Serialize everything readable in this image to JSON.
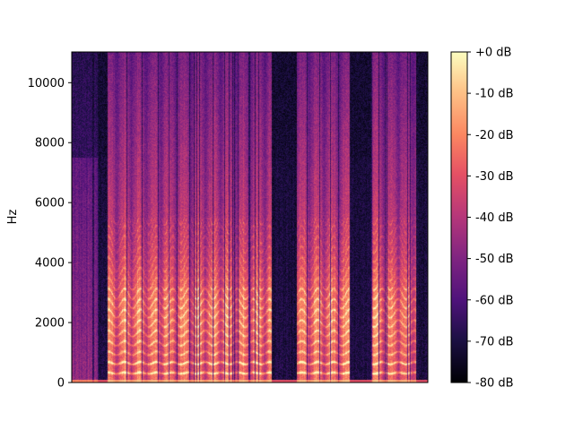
{
  "chart_data": {
    "type": "heatmap",
    "kind": "spectrogram",
    "colormap": "magma",
    "title": "",
    "xlabel": "",
    "ylabel": "Hz",
    "ylim": [
      0,
      11025
    ],
    "yticks": [
      0,
      2000,
      4000,
      6000,
      8000,
      10000
    ],
    "ytick_labels": [
      "0",
      "2000",
      "4000",
      "6000",
      "8000",
      "10000"
    ],
    "xticks": [],
    "grid": false,
    "colorbar": {
      "range_db": [
        -80,
        0
      ],
      "ticks": [
        0,
        -10,
        -20,
        -30,
        -40,
        -50,
        -60,
        -70,
        -80
      ],
      "tick_labels": [
        "+0 dB",
        "-10 dB",
        "-20 dB",
        "-30 dB",
        "-40 dB",
        "-50 dB",
        "-60 dB",
        "-70 dB",
        "-80 dB"
      ]
    },
    "silent_segments": [
      [
        0.075,
        0.1
      ],
      [
        0.56,
        0.63
      ],
      [
        0.78,
        0.84
      ],
      [
        0.965,
        1.0
      ]
    ],
    "voiced_segments": [
      [
        0.1,
        0.56
      ],
      [
        0.63,
        0.78
      ],
      [
        0.84,
        0.965
      ]
    ],
    "formant_peak_hz": 2500,
    "harmonic_spacing_hz": 330
  }
}
